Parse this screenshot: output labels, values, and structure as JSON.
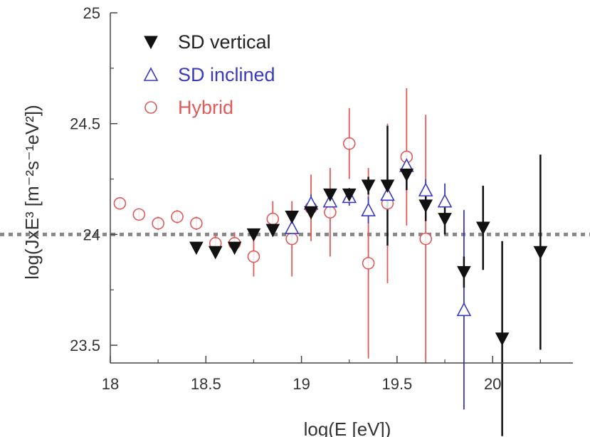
{
  "chart_data": {
    "type": "scatter",
    "xlabel": "log(E [eV])",
    "ylabel": "log(JxE³ [m⁻²s⁻¹eV²])",
    "xlim": [
      18.0,
      20.42
    ],
    "ylim": [
      23.42,
      25.0
    ],
    "x_ticks": [
      "18",
      "18.5",
      "19",
      "19.5",
      "20"
    ],
    "y_ticks": [
      "23.5",
      "24",
      "24.5",
      "25"
    ],
    "reference_line": {
      "y": 24.0,
      "style": "dotted"
    },
    "legend_position": "top-left",
    "series": [
      {
        "name": "SD vertical",
        "marker": "filled-triangle-down",
        "color": "#111111",
        "points": [
          {
            "x": 18.45,
            "y": 23.94,
            "err": 0
          },
          {
            "x": 18.55,
            "y": 23.92,
            "err": 0
          },
          {
            "x": 18.65,
            "y": 23.94,
            "err": 0
          },
          {
            "x": 18.75,
            "y": 24.0,
            "err": 0
          },
          {
            "x": 18.85,
            "y": 24.02,
            "err": 0
          },
          {
            "x": 18.95,
            "y": 24.08,
            "err": 0
          },
          {
            "x": 19.05,
            "y": 24.1,
            "err": 0
          },
          {
            "x": 19.15,
            "y": 24.18,
            "err": 0
          },
          {
            "x": 19.25,
            "y": 24.18,
            "err": 0
          },
          {
            "x": 19.35,
            "y": 24.22,
            "err": 0.04
          },
          {
            "x": 19.45,
            "y": 24.22,
            "err": 0.27
          },
          {
            "x": 19.55,
            "y": 24.27,
            "err": 0.07
          },
          {
            "x": 19.65,
            "y": 24.13,
            "err": 0.07
          },
          {
            "x": 19.75,
            "y": 24.07,
            "err": 0.07
          },
          {
            "x": 19.85,
            "y": 23.83,
            "err": 0.07
          },
          {
            "x": 19.95,
            "y": 24.03,
            "err": 0.19
          },
          {
            "x": 20.05,
            "y": 23.53,
            "err": 0.44
          },
          {
            "x": 20.25,
            "y": 23.92,
            "err": 0.44
          }
        ]
      },
      {
        "name": "SD inclined",
        "marker": "open-triangle-up",
        "color": "#3a3ac0",
        "points": [
          {
            "x": 18.95,
            "y": 24.03,
            "err": 0.04
          },
          {
            "x": 19.05,
            "y": 24.14,
            "err": 0.04
          },
          {
            "x": 19.15,
            "y": 24.15,
            "err": 0.04
          },
          {
            "x": 19.25,
            "y": 24.17,
            "err": 0.04
          },
          {
            "x": 19.35,
            "y": 24.11,
            "err": 0.06
          },
          {
            "x": 19.45,
            "y": 24.18,
            "err": 0.06
          },
          {
            "x": 19.55,
            "y": 24.31,
            "err": 0.04
          },
          {
            "x": 19.65,
            "y": 24.2,
            "err": 0.05
          },
          {
            "x": 19.75,
            "y": 24.15,
            "err": 0.08
          },
          {
            "x": 19.85,
            "y": 23.66,
            "err": 0.45
          }
        ]
      },
      {
        "name": "Hybrid",
        "marker": "open-circle",
        "color": "#e05a5a",
        "points": [
          {
            "x": 18.05,
            "y": 24.14,
            "err": 0.02
          },
          {
            "x": 18.15,
            "y": 24.09,
            "err": 0.02
          },
          {
            "x": 18.25,
            "y": 24.05,
            "err": 0.03
          },
          {
            "x": 18.35,
            "y": 24.08,
            "err": 0.03
          },
          {
            "x": 18.45,
            "y": 24.05,
            "err": 0.03
          },
          {
            "x": 18.55,
            "y": 23.96,
            "err": 0.04
          },
          {
            "x": 18.65,
            "y": 23.96,
            "err": 0.05
          },
          {
            "x": 18.75,
            "y": 23.9,
            "err": 0.09
          },
          {
            "x": 18.85,
            "y": 24.07,
            "err": 0.08
          },
          {
            "x": 18.95,
            "y": 23.98,
            "err": 0.17
          },
          {
            "x": 19.05,
            "y": 24.12,
            "err": 0.15
          },
          {
            "x": 19.15,
            "y": 24.1,
            "err": 0.2
          },
          {
            "x": 19.25,
            "y": 24.41,
            "err": 0.16
          },
          {
            "x": 19.35,
            "y": 23.87,
            "err": 0.43
          },
          {
            "x": 19.45,
            "y": 24.14,
            "err": 0.36
          },
          {
            "x": 19.55,
            "y": 24.35,
            "err": 0.31
          },
          {
            "x": 19.65,
            "y": 23.98,
            "err": 0.56
          }
        ]
      }
    ]
  }
}
